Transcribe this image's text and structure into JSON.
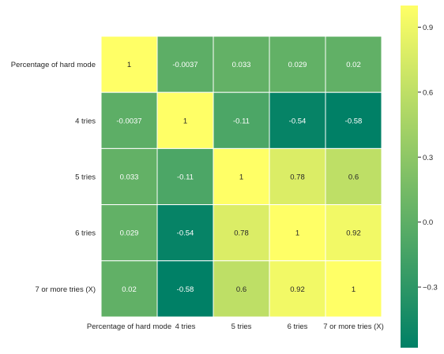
{
  "chart_data": {
    "type": "heatmap",
    "title": "",
    "xlabel": "",
    "ylabel": "",
    "rows": [
      "Percentage of hard mode",
      "4 tries",
      "5 tries",
      "6 tries",
      "7 or more tries (X)"
    ],
    "columns": [
      "Percentage of hard mode",
      "4 tries",
      "5 tries",
      "6 tries",
      "7 or more tries (X)"
    ],
    "values": [
      [
        1,
        -0.0037,
        0.033,
        0.029,
        0.02
      ],
      [
        -0.0037,
        1,
        -0.11,
        -0.54,
        -0.58
      ],
      [
        0.033,
        -0.11,
        1,
        0.78,
        0.6
      ],
      [
        0.029,
        -0.54,
        0.78,
        1,
        0.92
      ],
      [
        0.02,
        -0.58,
        0.6,
        0.92,
        1
      ]
    ],
    "value_labels": [
      [
        "1",
        "-0.0037",
        "0.033",
        "0.029",
        "0.02"
      ],
      [
        "-0.0037",
        "1",
        "-0.11",
        "-0.54",
        "-0.58"
      ],
      [
        "0.033",
        "-0.11",
        "1",
        "0.78",
        "0.6"
      ],
      [
        "0.029",
        "-0.54",
        "0.78",
        "1",
        "0.92"
      ],
      [
        "0.02",
        "-0.58",
        "0.6",
        "0.92",
        "1"
      ]
    ],
    "colormap": "summer",
    "color_low": "#008066",
    "color_high": "#ffff66",
    "vmin": -0.58,
    "vmax": 1,
    "colorbar": {
      "ticks": [
        0.9,
        0.6,
        0.3,
        0.0,
        -0.3
      ],
      "tick_labels": [
        "0.9",
        "0.6",
        "0.3",
        "0.0",
        "−0.3"
      ]
    },
    "grid": false,
    "legend": "colorbar-right"
  }
}
